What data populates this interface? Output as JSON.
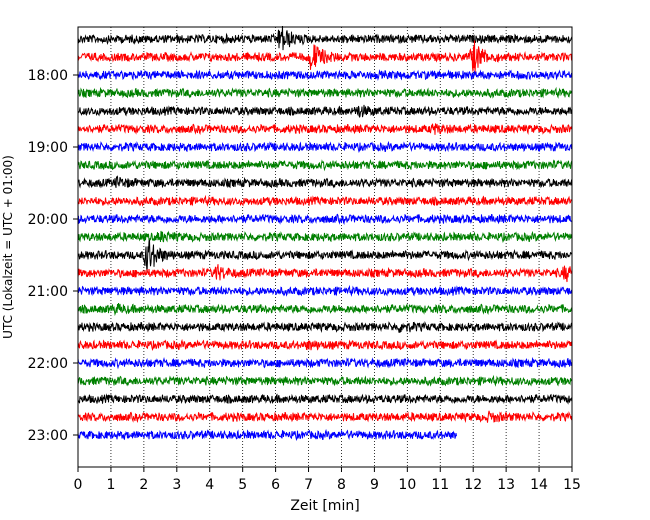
{
  "chart_data": {
    "type": "line",
    "title": "",
    "xlabel": "Zeit  [min]",
    "ylabel": "UTC (Lokalzeit = UTC + 01:00)",
    "xlim": [
      0,
      15
    ],
    "x_ticks": [
      "0",
      "1",
      "2",
      "3",
      "4",
      "5",
      "6",
      "7",
      "8",
      "9",
      "10",
      "11",
      "12",
      "13",
      "14",
      "15"
    ],
    "y_ticks": [
      "18:00",
      "19:00",
      "20:00",
      "21:00",
      "22:00",
      "23:00"
    ],
    "grid": "vertical dotted",
    "trace_interval_min": 15,
    "colors": [
      "#000000",
      "#ff0000",
      "#0000ff",
      "#008000"
    ],
    "series": [
      {
        "start": "17:45",
        "events": [
          {
            "t": 6.15,
            "amp": 2.2
          }
        ]
      },
      {
        "start": "18:00",
        "events": [
          {
            "t": 7.1,
            "amp": 2.4
          },
          {
            "t": 12.0,
            "amp": 2.6
          }
        ]
      },
      {
        "start": "18:15",
        "events": []
      },
      {
        "start": "18:30",
        "events": []
      },
      {
        "start": "18:45",
        "events": [
          {
            "t": 8.5,
            "amp": 0.7
          }
        ]
      },
      {
        "start": "19:00",
        "events": [
          {
            "t": 10.8,
            "amp": 0.5
          }
        ]
      },
      {
        "start": "19:15",
        "events": []
      },
      {
        "start": "19:30",
        "events": []
      },
      {
        "start": "19:45",
        "events": [
          {
            "t": 1.2,
            "amp": 0.5
          }
        ]
      },
      {
        "start": "20:00",
        "events": []
      },
      {
        "start": "20:15",
        "events": []
      },
      {
        "start": "20:30",
        "events": [
          {
            "t": 2.5,
            "amp": 0.5
          }
        ]
      },
      {
        "start": "20:45",
        "events": [
          {
            "t": 2.1,
            "amp": 3.0
          }
        ]
      },
      {
        "start": "21:00",
        "events": [
          {
            "t": 4.2,
            "amp": 1.0
          },
          {
            "t": 14.8,
            "amp": 1.0
          }
        ]
      },
      {
        "start": "21:15",
        "events": []
      },
      {
        "start": "21:30",
        "events": [
          {
            "t": 1.1,
            "amp": 0.4
          }
        ]
      },
      {
        "start": "21:45",
        "events": [
          {
            "t": 9.8,
            "amp": 0.5
          }
        ]
      },
      {
        "start": "22:00",
        "events": [
          {
            "t": 7.0,
            "amp": 0.4
          }
        ]
      },
      {
        "start": "22:15",
        "events": []
      },
      {
        "start": "22:30",
        "events": []
      },
      {
        "start": "22:45",
        "events": []
      },
      {
        "start": "23:00",
        "events": [
          {
            "t": 12.5,
            "amp": 0.5
          }
        ]
      },
      {
        "start": "23:15",
        "end_min": 11.5,
        "events": []
      }
    ]
  }
}
